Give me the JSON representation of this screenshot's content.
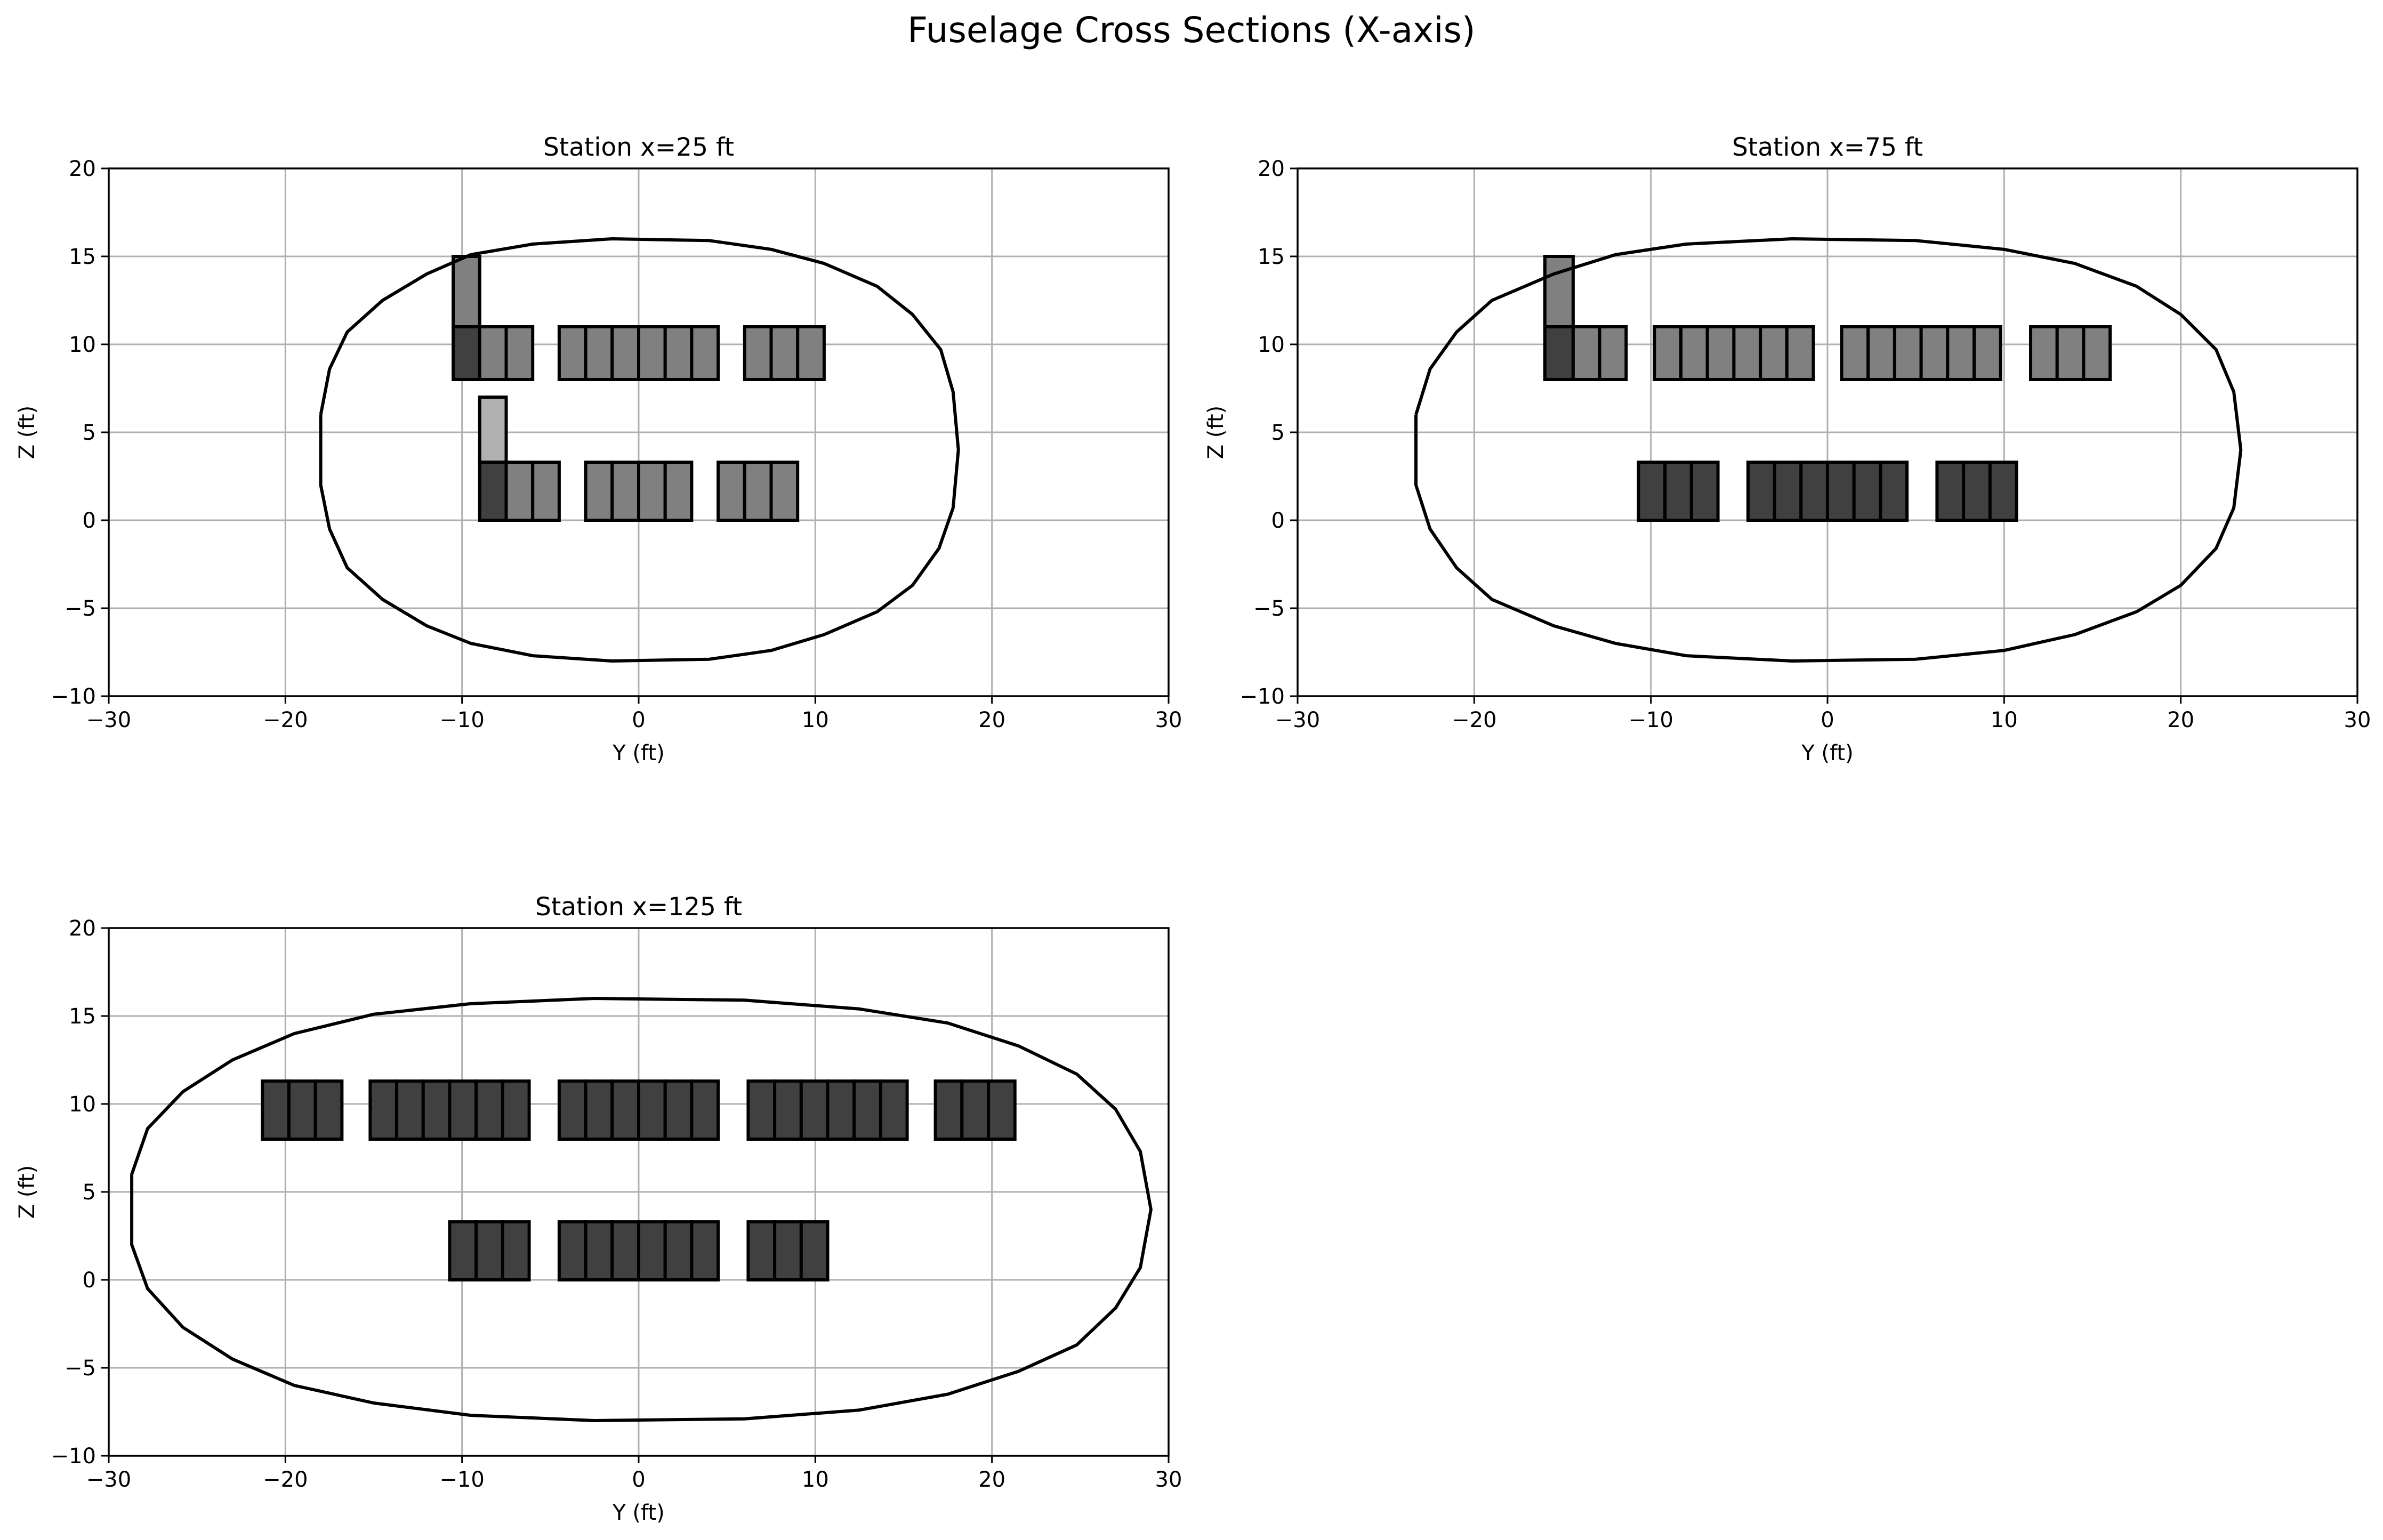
{
  "figure": {
    "title": "Fuselage Cross Sections (X-axis)"
  },
  "chart_data": [
    {
      "type": "scatter",
      "title": "Station x=25 ft",
      "xlabel": "Y (ft)",
      "ylabel": "Z (ft)",
      "xlim": [
        -30,
        30
      ],
      "ylim": [
        -10,
        20
      ],
      "xticks": [
        -30,
        -20,
        -10,
        0,
        10,
        20,
        30
      ],
      "yticks": [
        -10,
        -5,
        0,
        5,
        10,
        15,
        20
      ],
      "grid": true,
      "colors": {
        "outline": "#000000",
        "grid": "#b0b0b0",
        "dark": "#404040",
        "medium": "#808080",
        "light": "#b0b0b0"
      },
      "outline": [
        [
          -18,
          6
        ],
        [
          -18,
          2
        ],
        [
          -17.5,
          -0.5
        ],
        [
          -16.5,
          -2.7
        ],
        [
          -14.5,
          -4.5
        ],
        [
          -12,
          -6
        ],
        [
          -9.5,
          -7
        ],
        [
          -6,
          -7.7
        ],
        [
          -1.5,
          -8
        ],
        [
          4,
          -7.9
        ],
        [
          7.5,
          -7.4
        ],
        [
          10.5,
          -6.5
        ],
        [
          13.5,
          -5.2
        ],
        [
          15.5,
          -3.7
        ],
        [
          17,
          -1.6
        ],
        [
          17.8,
          0.7
        ],
        [
          18.1,
          4
        ],
        [
          17.8,
          7.3
        ],
        [
          17.1,
          9.7
        ],
        [
          15.5,
          11.7
        ],
        [
          13.5,
          13.3
        ],
        [
          10.5,
          14.6
        ],
        [
          7.5,
          15.4
        ],
        [
          4,
          15.9
        ],
        [
          -1.5,
          16
        ],
        [
          -6,
          15.7
        ],
        [
          -9.5,
          15.1
        ],
        [
          -12,
          14
        ],
        [
          -14.5,
          12.5
        ],
        [
          -16.5,
          10.7
        ],
        [
          -17.5,
          8.6
        ],
        [
          -18,
          6
        ]
      ],
      "blocks": [
        {
          "y": -10.5,
          "z": 15,
          "w": 1.5,
          "h": 4,
          "shade": "medium",
          "n": 1
        },
        {
          "y": -10.5,
          "z": 11,
          "w": 1.5,
          "h": 3,
          "shade": "dark",
          "n": 1
        },
        {
          "y": -9,
          "z": 11,
          "w": 3,
          "h": 3,
          "shade": "medium",
          "n": 2
        },
        {
          "y": -4.5,
          "z": 11,
          "w": 9,
          "h": 3,
          "shade": "medium",
          "n": 6
        },
        {
          "y": 6,
          "z": 11,
          "w": 4.5,
          "h": 3,
          "shade": "medium",
          "n": 3
        },
        {
          "y": -9,
          "z": 7,
          "w": 1.5,
          "h": 3.7,
          "shade": "light",
          "n": 1
        },
        {
          "y": -9,
          "z": 3.3,
          "w": 1.5,
          "h": 3.3,
          "shade": "dark",
          "n": 1
        },
        {
          "y": -7.5,
          "z": 3.3,
          "w": 3,
          "h": 3.3,
          "shade": "medium",
          "n": 2
        },
        {
          "y": -3,
          "z": 3.3,
          "w": 6,
          "h": 3.3,
          "shade": "medium",
          "n": 4
        },
        {
          "y": 4.5,
          "z": 3.3,
          "w": 4.5,
          "h": 3.3,
          "shade": "medium",
          "n": 3
        }
      ]
    },
    {
      "type": "scatter",
      "title": "Station x=75 ft",
      "xlabel": "Y (ft)",
      "ylabel": "Z (ft)",
      "xlim": [
        -30,
        30
      ],
      "ylim": [
        -10,
        20
      ],
      "xticks": [
        -30,
        -20,
        -10,
        0,
        10,
        20,
        30
      ],
      "yticks": [
        -10,
        -5,
        0,
        5,
        10,
        15,
        20
      ],
      "grid": true,
      "colors": {
        "outline": "#000000",
        "grid": "#b0b0b0",
        "dark": "#404040",
        "medium": "#808080",
        "light": "#b0b0b0"
      },
      "outline": [
        [
          -23.3,
          6
        ],
        [
          -23.3,
          2
        ],
        [
          -22.5,
          -0.5
        ],
        [
          -21,
          -2.7
        ],
        [
          -19,
          -4.5
        ],
        [
          -15.5,
          -6
        ],
        [
          -12,
          -7
        ],
        [
          -8,
          -7.7
        ],
        [
          -2,
          -8
        ],
        [
          5,
          -7.9
        ],
        [
          10,
          -7.4
        ],
        [
          14,
          -6.5
        ],
        [
          17.5,
          -5.2
        ],
        [
          20,
          -3.7
        ],
        [
          22,
          -1.6
        ],
        [
          23,
          0.7
        ],
        [
          23.4,
          4
        ],
        [
          23,
          7.3
        ],
        [
          22,
          9.7
        ],
        [
          20,
          11.7
        ],
        [
          17.5,
          13.3
        ],
        [
          14,
          14.6
        ],
        [
          10,
          15.4
        ],
        [
          5,
          15.9
        ],
        [
          -2,
          16
        ],
        [
          -8,
          15.7
        ],
        [
          -12,
          15.1
        ],
        [
          -15.5,
          14
        ],
        [
          -19,
          12.5
        ],
        [
          -21,
          10.7
        ],
        [
          -22.5,
          8.6
        ],
        [
          -23.3,
          6
        ]
      ],
      "blocks": [
        {
          "y": -16,
          "z": 15,
          "w": 1.6,
          "h": 4,
          "shade": "medium",
          "n": 1
        },
        {
          "y": -16,
          "z": 11,
          "w": 1.6,
          "h": 3,
          "shade": "dark",
          "n": 1
        },
        {
          "y": -14.4,
          "z": 11,
          "w": 3,
          "h": 3,
          "shade": "medium",
          "n": 2
        },
        {
          "y": -9.8,
          "z": 11,
          "w": 9,
          "h": 3,
          "shade": "medium",
          "n": 6
        },
        {
          "y": 0.8,
          "z": 11,
          "w": 9,
          "h": 3,
          "shade": "medium",
          "n": 6
        },
        {
          "y": 11.5,
          "z": 11,
          "w": 4.5,
          "h": 3,
          "shade": "medium",
          "n": 3
        },
        {
          "y": -10.7,
          "z": 3.3,
          "w": 4.5,
          "h": 3.3,
          "shade": "dark",
          "n": 3
        },
        {
          "y": -4.5,
          "z": 3.3,
          "w": 9,
          "h": 3.3,
          "shade": "dark",
          "n": 6
        },
        {
          "y": 6.2,
          "z": 3.3,
          "w": 4.5,
          "h": 3.3,
          "shade": "dark",
          "n": 3
        }
      ]
    },
    {
      "type": "scatter",
      "title": "Station x=125 ft",
      "xlabel": "Y (ft)",
      "ylabel": "Z (ft)",
      "xlim": [
        -30,
        30
      ],
      "ylim": [
        -10,
        20
      ],
      "xticks": [
        -30,
        -20,
        -10,
        0,
        10,
        20,
        30
      ],
      "yticks": [
        -10,
        -5,
        0,
        5,
        10,
        15,
        20
      ],
      "grid": true,
      "colors": {
        "outline": "#000000",
        "grid": "#b0b0b0",
        "dark": "#404040",
        "medium": "#808080",
        "light": "#b0b0b0"
      },
      "outline": [
        [
          -28.7,
          6
        ],
        [
          -28.7,
          2
        ],
        [
          -27.8,
          -0.5
        ],
        [
          -25.8,
          -2.7
        ],
        [
          -23,
          -4.5
        ],
        [
          -19.5,
          -6
        ],
        [
          -15,
          -7
        ],
        [
          -9.5,
          -7.7
        ],
        [
          -2.5,
          -8
        ],
        [
          6,
          -7.9
        ],
        [
          12.5,
          -7.4
        ],
        [
          17.5,
          -6.5
        ],
        [
          21.5,
          -5.2
        ],
        [
          24.8,
          -3.7
        ],
        [
          27,
          -1.6
        ],
        [
          28.4,
          0.7
        ],
        [
          29,
          4
        ],
        [
          28.4,
          7.3
        ],
        [
          27,
          9.7
        ],
        [
          24.8,
          11.7
        ],
        [
          21.5,
          13.3
        ],
        [
          17.5,
          14.6
        ],
        [
          12.5,
          15.4
        ],
        [
          6,
          15.9
        ],
        [
          -2.5,
          16
        ],
        [
          -9.5,
          15.7
        ],
        [
          -15,
          15.1
        ],
        [
          -19.5,
          14
        ],
        [
          -23,
          12.5
        ],
        [
          -25.8,
          10.7
        ],
        [
          -27.8,
          8.6
        ],
        [
          -28.7,
          6
        ]
      ],
      "blocks": [
        {
          "y": -21.3,
          "z": 11.3,
          "w": 4.5,
          "h": 3.3,
          "shade": "dark",
          "n": 3
        },
        {
          "y": -15.2,
          "z": 11.3,
          "w": 9,
          "h": 3.3,
          "shade": "dark",
          "n": 6
        },
        {
          "y": -4.5,
          "z": 11.3,
          "w": 9,
          "h": 3.3,
          "shade": "dark",
          "n": 6
        },
        {
          "y": 6.2,
          "z": 11.3,
          "w": 9,
          "h": 3.3,
          "shade": "dark",
          "n": 6
        },
        {
          "y": 16.8,
          "z": 11.3,
          "w": 4.5,
          "h": 3.3,
          "shade": "dark",
          "n": 3
        },
        {
          "y": -10.7,
          "z": 3.3,
          "w": 4.5,
          "h": 3.3,
          "shade": "dark",
          "n": 3
        },
        {
          "y": -4.5,
          "z": 3.3,
          "w": 9,
          "h": 3.3,
          "shade": "dark",
          "n": 6
        },
        {
          "y": 6.2,
          "z": 3.3,
          "w": 4.5,
          "h": 3.3,
          "shade": "dark",
          "n": 3
        }
      ]
    }
  ]
}
